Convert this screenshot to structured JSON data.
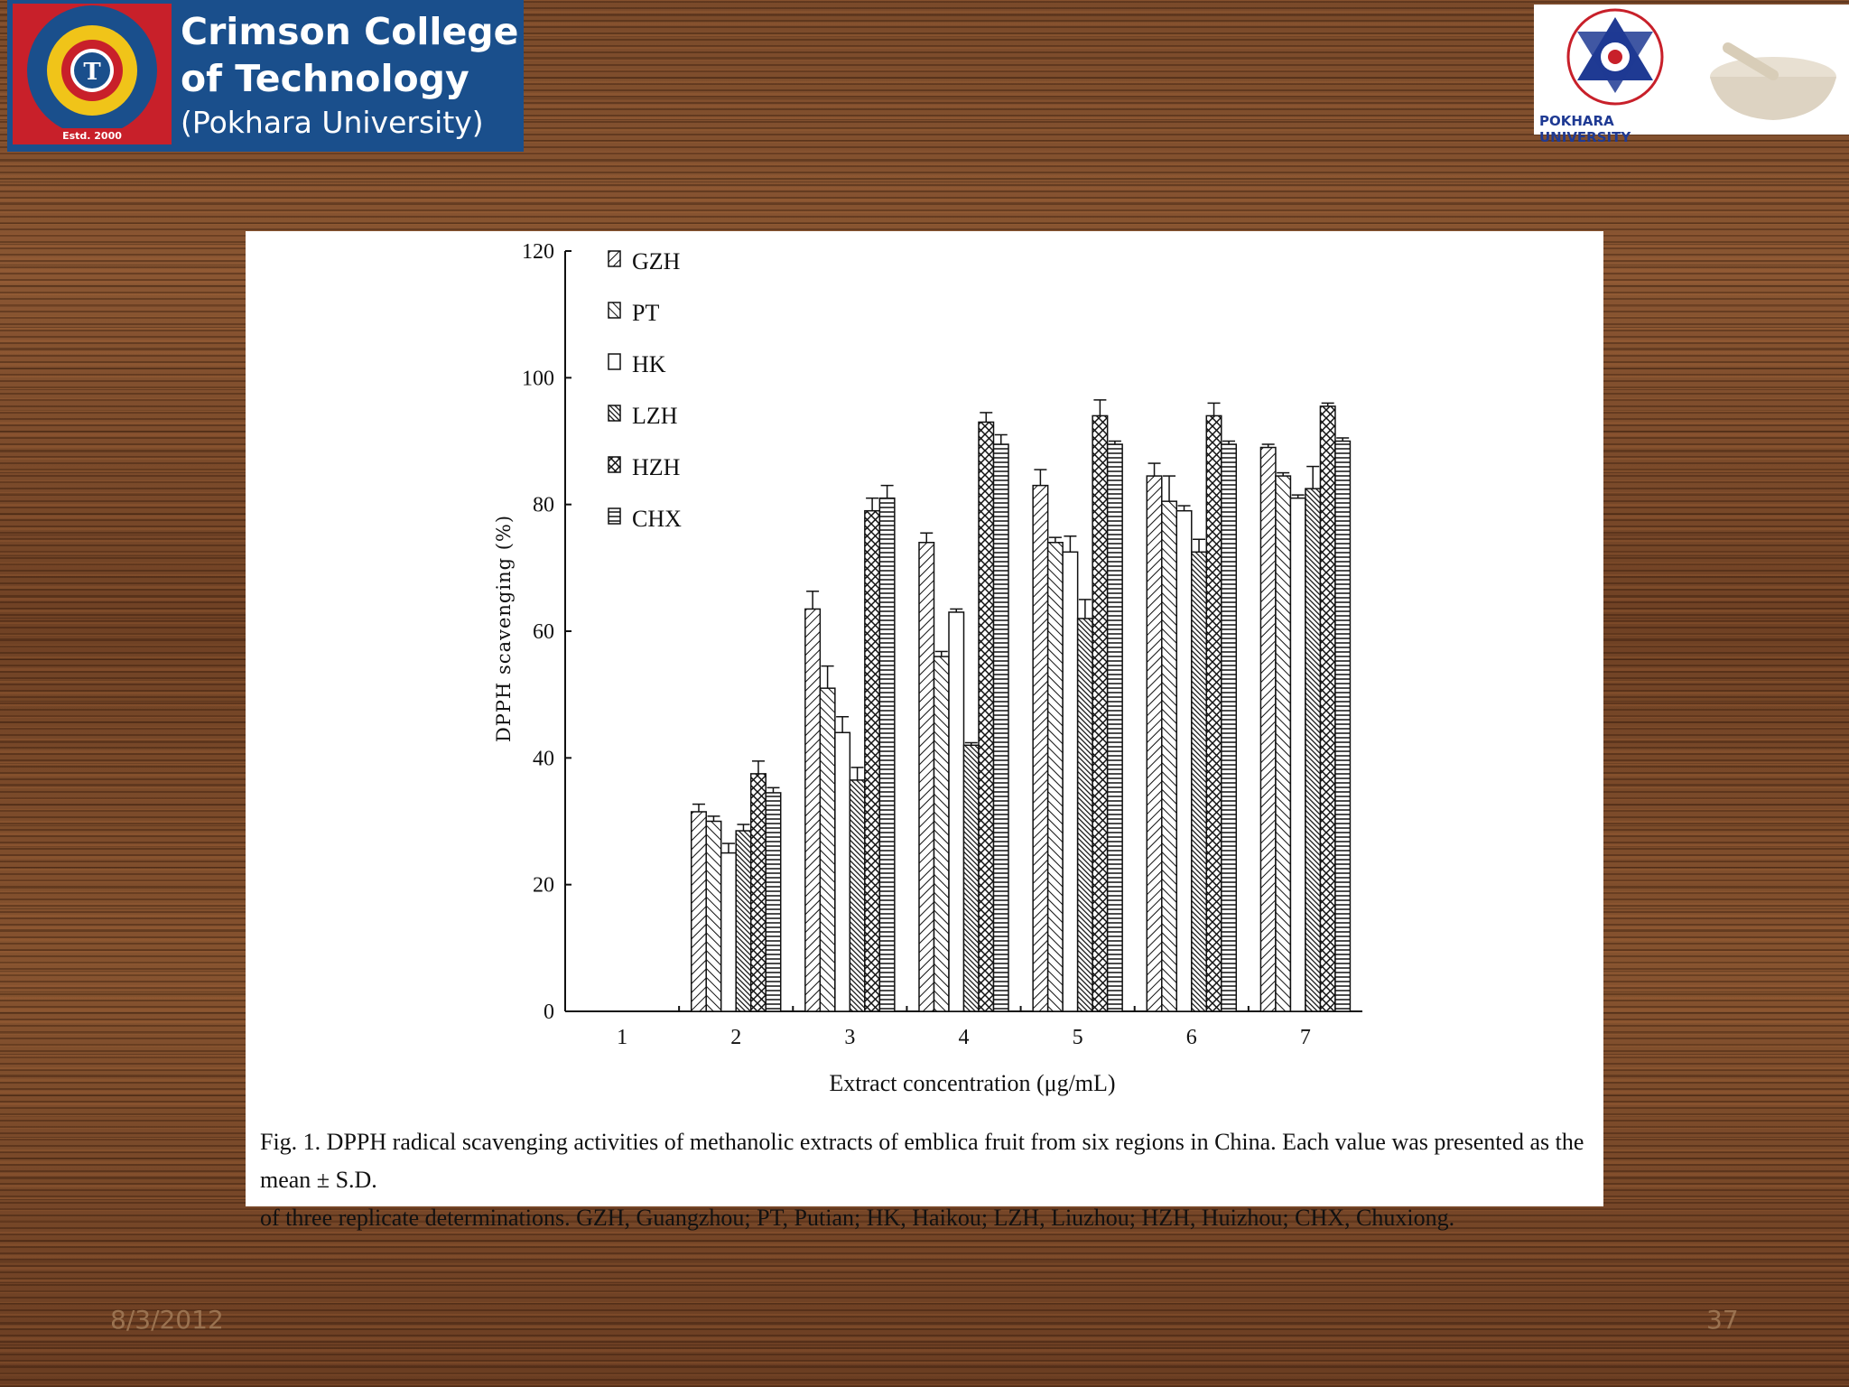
{
  "header": {
    "college_line1": "Crimson College",
    "college_line2": "of Technology",
    "college_line3": "(Pokhara University)",
    "seal_text": "Crimson College of Technology",
    "seal_letter": "T",
    "seal_estd": "Estd. 2000",
    "university_label": "POKHARA UNIVERSITY",
    "brand_blue": "#1a4f8c",
    "brand_red": "#c8202a"
  },
  "chart_data": {
    "type": "bar",
    "ylabel": "DPPH scavenging (%)",
    "xlabel": "Extract concentration (μg/mL)",
    "ylim": [
      0,
      120
    ],
    "yticks": [
      "0",
      "20",
      "40",
      "60",
      "80",
      "100",
      "120"
    ],
    "categories": [
      "1",
      "2",
      "3",
      "4",
      "5",
      "6",
      "7"
    ],
    "legend_position": "top-left",
    "grid": false,
    "series": [
      {
        "name": "GZH",
        "pattern": "diag-right",
        "values": [
          null,
          31.5,
          63.5,
          74,
          83,
          84.5,
          89
        ],
        "errors": [
          null,
          1.2,
          2.8,
          1.5,
          2.5,
          2,
          0.5
        ]
      },
      {
        "name": "PT",
        "pattern": "diag-left",
        "values": [
          null,
          30,
          51,
          56,
          74,
          80.5,
          84.5
        ],
        "errors": [
          null,
          0.8,
          3.5,
          0.8,
          0.8,
          4,
          0.5
        ]
      },
      {
        "name": "HK",
        "pattern": "blank",
        "values": [
          null,
          25,
          44,
          63,
          72.5,
          79,
          81
        ],
        "errors": [
          null,
          1.5,
          2.5,
          0.5,
          2.5,
          0.8,
          0.5
        ]
      },
      {
        "name": "LZH",
        "pattern": "dense-diag",
        "values": [
          null,
          28.5,
          36.5,
          42,
          62,
          72.5,
          82.5
        ],
        "errors": [
          null,
          1,
          2,
          0.4,
          3,
          2,
          3.5
        ]
      },
      {
        "name": "HZH",
        "pattern": "cross",
        "values": [
          null,
          37.5,
          79,
          93,
          94,
          94,
          95.5
        ],
        "errors": [
          null,
          2,
          2,
          1.5,
          2.5,
          2,
          0.5
        ]
      },
      {
        "name": "CHX",
        "pattern": "horizontal",
        "values": [
          null,
          34.5,
          81,
          89.5,
          89.5,
          89.5,
          90
        ],
        "errors": [
          null,
          0.8,
          2,
          1.5,
          0.5,
          0.5,
          0.5
        ]
      }
    ]
  },
  "caption": {
    "line1": "Fig. 1.  DPPH radical scavenging activities of methanolic extracts of emblica fruit from six regions in China. Each value was presented as the mean ± S.D.",
    "line2": "of three replicate determinations. GZH, Guangzhou; PT, Putian; HK, Haikou; LZH, Liuzhou; HZH, Huizhou; CHX, Chuxiong."
  },
  "footer": {
    "date": "8/3/2012",
    "page": "37"
  }
}
